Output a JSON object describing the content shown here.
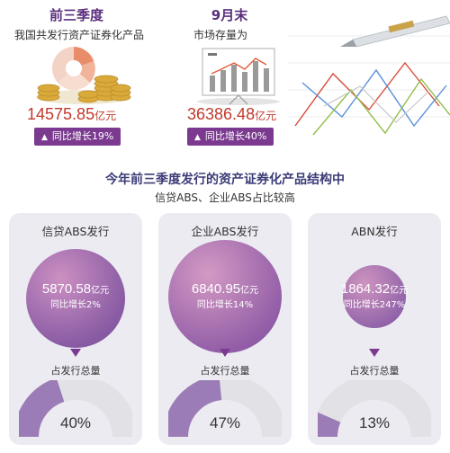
{
  "colors": {
    "accent_purple": "#7b3a8f",
    "gauge_fill": "#9b7cb6",
    "gauge_track": "#e2e1e6",
    "amount_red": "#c0392b",
    "title_purple": "#5a2e7d",
    "card_bg": "#ecebf2"
  },
  "left_panel": {
    "title": "前三季度",
    "subtitle": "我国共发行资产证券化产品",
    "amount": "14575.85",
    "unit": "亿元",
    "badge_icon": "up-triangle-icon",
    "badge": "同比增长19%",
    "illustration": "pie-chart-with-coins"
  },
  "middle_panel": {
    "title": "9月末",
    "subtitle": "市场存量为",
    "amount": "36386.48",
    "unit": "亿元",
    "badge_icon": "up-triangle-icon",
    "badge": "同比增长40%",
    "illustration": "bar-chart-board"
  },
  "right_decoration": "pen-and-line-chart",
  "section": {
    "title": "今年前三季度发行的资产证券化产品结构中",
    "subtitle": "信贷ABS、企业ABS占比较高"
  },
  "columns": [
    {
      "title": "信贷ABS发行",
      "amount": "5870.58",
      "unit": "亿元",
      "growth": "同比增长2%",
      "share_label": "占发行总量",
      "share_text": "40%",
      "share": 0.4
    },
    {
      "title": "企业ABS发行",
      "amount": "6840.95",
      "unit": "亿元",
      "growth": "同比增长14%",
      "share_label": "占发行总量",
      "share_text": "47%",
      "share": 0.47
    },
    {
      "title": "ABN发行",
      "amount": "1864.32",
      "unit": "亿元",
      "growth": "同比增长247%",
      "share_label": "占发行总量",
      "share_text": "13%",
      "share": 0.13
    }
  ]
}
